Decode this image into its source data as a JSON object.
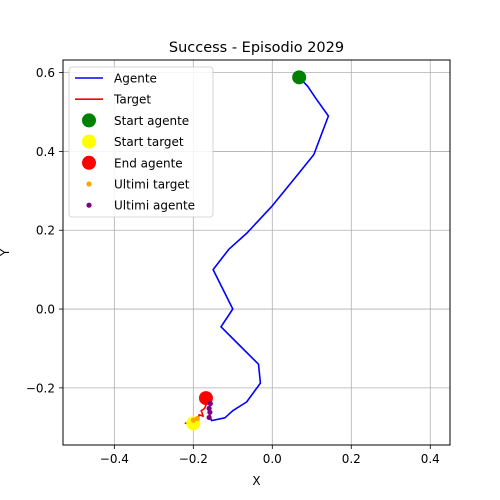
{
  "chart_data": {
    "type": "line",
    "title": "Success - Episodio 2029",
    "xlabel": "X",
    "ylabel": "Y",
    "xlim": [
      -0.53,
      0.45
    ],
    "ylim": [
      -0.345,
      0.632
    ],
    "x_ticks": [
      -0.4,
      -0.2,
      0.0,
      0.2,
      0.4
    ],
    "x_tick_labels": [
      "−0.4",
      "−0.2",
      "0.0",
      "0.2",
      "0.4"
    ],
    "y_ticks": [
      -0.2,
      0.0,
      0.2,
      0.4,
      0.6
    ],
    "y_tick_labels": [
      "−0.2",
      "0.0",
      "0.2",
      "0.4",
      "0.6"
    ],
    "grid": true,
    "legend_position": "top-left",
    "series": [
      {
        "name": "Agente",
        "kind": "line",
        "color": "#0000ff",
        "points": [
          [
            0.068,
            0.588
          ],
          [
            0.09,
            0.565
          ],
          [
            0.11,
            0.535
          ],
          [
            0.142,
            0.49
          ],
          [
            0.105,
            0.392
          ],
          [
            0.065,
            0.342
          ],
          [
            0.0,
            0.262
          ],
          [
            -0.065,
            0.192
          ],
          [
            -0.11,
            0.152
          ],
          [
            -0.15,
            0.1
          ],
          [
            -0.1,
            0.0
          ],
          [
            -0.13,
            -0.045
          ],
          [
            -0.085,
            -0.09
          ],
          [
            -0.035,
            -0.14
          ],
          [
            -0.03,
            -0.188
          ],
          [
            -0.065,
            -0.236
          ],
          [
            -0.1,
            -0.258
          ],
          [
            -0.12,
            -0.276
          ],
          [
            -0.154,
            -0.283
          ],
          [
            -0.158,
            -0.271
          ],
          [
            -0.16,
            -0.255
          ],
          [
            -0.158,
            -0.242
          ]
        ]
      },
      {
        "name": "Target",
        "kind": "line",
        "color": "#ff0000",
        "points": [
          [
            -0.22,
            -0.29
          ],
          [
            -0.21,
            -0.287
          ],
          [
            -0.205,
            -0.291
          ],
          [
            -0.198,
            -0.282
          ],
          [
            -0.19,
            -0.285
          ],
          [
            -0.185,
            -0.268
          ],
          [
            -0.175,
            -0.272
          ],
          [
            -0.18,
            -0.258
          ],
          [
            -0.172,
            -0.253
          ],
          [
            -0.166,
            -0.24
          ],
          [
            -0.168,
            -0.226
          ]
        ]
      },
      {
        "name": "Start agente",
        "kind": "marker",
        "color": "#008000",
        "size": "large",
        "points": [
          [
            0.068,
            0.588
          ]
        ]
      },
      {
        "name": "Start target",
        "kind": "marker",
        "color": "#ffff00",
        "size": "large",
        "points": [
          [
            -0.2,
            -0.29
          ]
        ]
      },
      {
        "name": "End agente",
        "kind": "marker",
        "color": "#ff0000",
        "size": "large",
        "points": [
          [
            -0.168,
            -0.226
          ]
        ]
      },
      {
        "name": "Ultimi target",
        "kind": "marker",
        "color": "#ffa500",
        "size": "small",
        "points": [
          [
            -0.2,
            -0.282
          ],
          [
            -0.19,
            -0.278
          ]
        ]
      },
      {
        "name": "Ultimi agente",
        "kind": "marker",
        "color": "#800080",
        "size": "small",
        "points": [
          [
            -0.157,
            -0.24
          ],
          [
            -0.16,
            -0.252
          ],
          [
            -0.158,
            -0.262
          ],
          [
            -0.16,
            -0.275
          ]
        ]
      }
    ]
  }
}
